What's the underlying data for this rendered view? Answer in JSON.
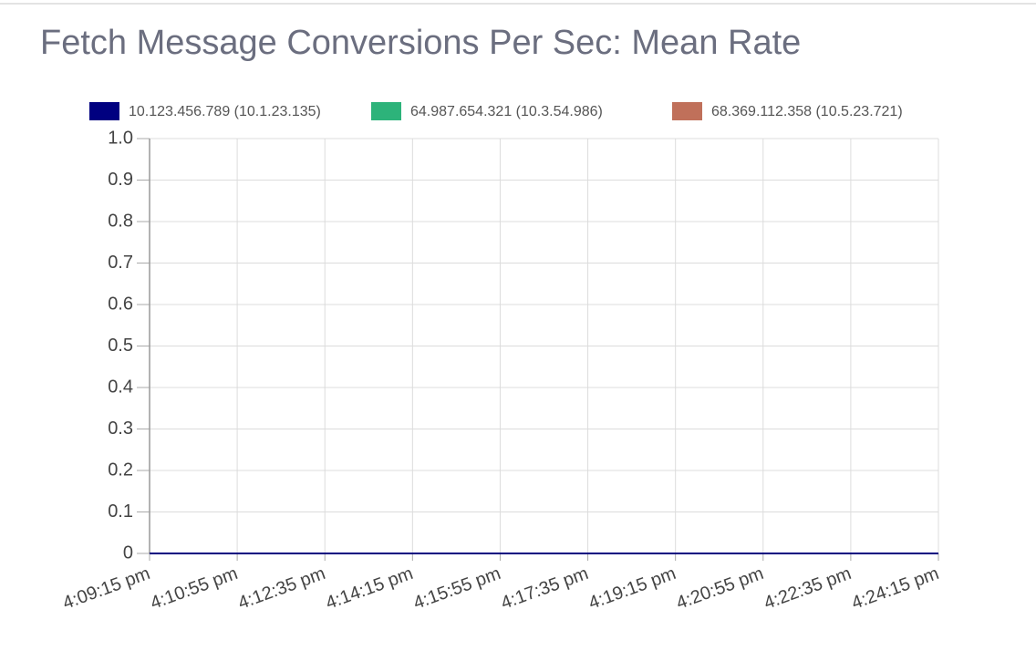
{
  "chart_data": {
    "type": "line",
    "title": "Fetch Message Conversions Per Sec: Mean Rate",
    "categories": [
      "4:09:15 pm",
      "4:10:55 pm",
      "4:12:35 pm",
      "4:14:15 pm",
      "4:15:55 pm",
      "4:17:35 pm",
      "4:19:15 pm",
      "4:20:55 pm",
      "4:22:35 pm",
      "4:24:15 pm"
    ],
    "series": [
      {
        "name": "10.123.456.789 (10.1.23.135)",
        "color": "#000080",
        "values": [
          0,
          0,
          0,
          0,
          0,
          0,
          0,
          0,
          0,
          0
        ]
      },
      {
        "name": "64.987.654.321 (10.3.54.986)",
        "color": "#2db37a",
        "values": [
          0,
          0,
          0,
          0,
          0,
          0,
          0,
          0,
          0,
          0
        ]
      },
      {
        "name": "68.369.112.358 (10.5.23.721)",
        "color": "#c0705a",
        "values": [
          0,
          0,
          0,
          0,
          0,
          0,
          0,
          0,
          0,
          0
        ]
      }
    ],
    "ylim": [
      0,
      1
    ],
    "yticks": [
      0,
      0.1,
      0.2,
      0.3,
      0.4,
      0.5,
      0.6,
      0.7,
      0.8,
      0.9,
      {
        "value": 1,
        "label": "1.0"
      }
    ],
    "grid": true,
    "legend": "top"
  }
}
